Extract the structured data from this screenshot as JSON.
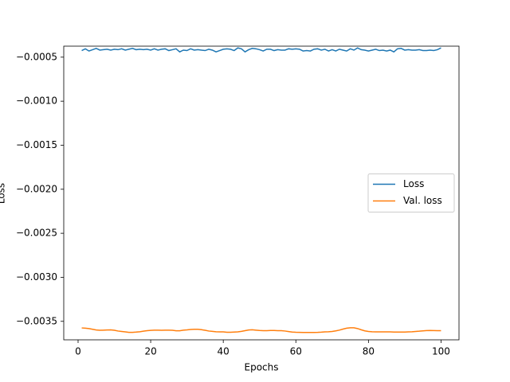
{
  "chart_data": {
    "type": "line",
    "xlabel": "Epochs",
    "ylabel": "Loss",
    "x": [
      1,
      2,
      3,
      4,
      5,
      6,
      7,
      8,
      9,
      10,
      11,
      12,
      13,
      14,
      15,
      16,
      17,
      18,
      19,
      20,
      21,
      22,
      23,
      24,
      25,
      26,
      27,
      28,
      29,
      30,
      31,
      32,
      33,
      34,
      35,
      36,
      37,
      38,
      39,
      40,
      41,
      42,
      43,
      44,
      45,
      46,
      47,
      48,
      49,
      50,
      51,
      52,
      53,
      54,
      55,
      56,
      57,
      58,
      59,
      60,
      61,
      62,
      63,
      64,
      65,
      66,
      67,
      68,
      69,
      70,
      71,
      72,
      73,
      74,
      75,
      76,
      77,
      78,
      79,
      80,
      81,
      82,
      83,
      84,
      85,
      86,
      87,
      88,
      89,
      90,
      91,
      92,
      93,
      94,
      95,
      96,
      97,
      98,
      99,
      100
    ],
    "series": [
      {
        "name": "Loss",
        "color": "#1f77b4",
        "values": [
          -0.000425,
          -0.000405,
          -0.00043,
          -0.000415,
          -0.0004,
          -0.00042,
          -0.000415,
          -0.00041,
          -0.00042,
          -0.00041,
          -0.000415,
          -0.000405,
          -0.00042,
          -0.00041,
          -0.0004,
          -0.000415,
          -0.00041,
          -0.000415,
          -0.00041,
          -0.00042,
          -0.000405,
          -0.00042,
          -0.00041,
          -0.000405,
          -0.000425,
          -0.000415,
          -0.000405,
          -0.00044,
          -0.00042,
          -0.000425,
          -0.000405,
          -0.00042,
          -0.000415,
          -0.00042,
          -0.000425,
          -0.00041,
          -0.00042,
          -0.00044,
          -0.000425,
          -0.00041,
          -0.000405,
          -0.00041,
          -0.000425,
          -0.000395,
          -0.000405,
          -0.00044,
          -0.000415,
          -0.0004,
          -0.000405,
          -0.000415,
          -0.00043,
          -0.00041,
          -0.00041,
          -0.000425,
          -0.000415,
          -0.00042,
          -0.00042,
          -0.000405,
          -0.00041,
          -0.000405,
          -0.00041,
          -0.00043,
          -0.000425,
          -0.00043,
          -0.00041,
          -0.000405,
          -0.00042,
          -0.00041,
          -0.00043,
          -0.000415,
          -0.00043,
          -0.00041,
          -0.00042,
          -0.00043,
          -0.000405,
          -0.00042,
          -0.000395,
          -0.000415,
          -0.00042,
          -0.00043,
          -0.00042,
          -0.00041,
          -0.000425,
          -0.00042,
          -0.00043,
          -0.00042,
          -0.00044,
          -0.000405,
          -0.0004,
          -0.00042,
          -0.000415,
          -0.00042,
          -0.00042,
          -0.000415,
          -0.000425,
          -0.000425,
          -0.00042,
          -0.000425,
          -0.000415,
          -0.000395
        ]
      },
      {
        "name": "Val. loss",
        "color": "#ff7f0e",
        "values": [
          -0.003575,
          -0.003578,
          -0.003582,
          -0.00359,
          -0.003598,
          -0.003602,
          -0.0036,
          -0.003598,
          -0.003597,
          -0.003602,
          -0.00361,
          -0.003615,
          -0.00362,
          -0.003625,
          -0.003625,
          -0.003622,
          -0.003618,
          -0.003612,
          -0.003606,
          -0.003603,
          -0.0036,
          -0.0036,
          -0.003602,
          -0.0036,
          -0.0036,
          -0.003602,
          -0.003607,
          -0.003607,
          -0.0036,
          -0.003597,
          -0.003592,
          -0.00359,
          -0.00359,
          -0.003595,
          -0.003602,
          -0.00361,
          -0.003614,
          -0.003618,
          -0.00362,
          -0.00362,
          -0.003624,
          -0.003624,
          -0.003622,
          -0.00362,
          -0.003614,
          -0.003606,
          -0.003598,
          -0.003596,
          -0.0036,
          -0.003604,
          -0.003606,
          -0.003606,
          -0.003604,
          -0.003604,
          -0.003606,
          -0.003606,
          -0.00361,
          -0.003616,
          -0.003622,
          -0.003624,
          -0.003625,
          -0.003626,
          -0.003626,
          -0.003626,
          -0.003626,
          -0.003625,
          -0.003623,
          -0.00362,
          -0.003618,
          -0.003615,
          -0.003608,
          -0.0036,
          -0.003588,
          -0.003578,
          -0.003573,
          -0.003573,
          -0.003582,
          -0.003596,
          -0.003608,
          -0.003615,
          -0.003618,
          -0.00362,
          -0.00362,
          -0.00362,
          -0.00362,
          -0.00362,
          -0.003622,
          -0.003622,
          -0.003622,
          -0.003622,
          -0.00362,
          -0.003618,
          -0.003615,
          -0.003612,
          -0.003608,
          -0.003605,
          -0.003604,
          -0.003605,
          -0.003606,
          -0.003606
        ]
      }
    ],
    "xlim": [
      -3.95,
      104.95
    ],
    "xticks": [
      0,
      20,
      40,
      60,
      80,
      100
    ],
    "ylim": [
      -0.00371,
      -0.000375
    ],
    "yticks": [
      {
        "value": -0.0005,
        "label": "−0.0005"
      },
      {
        "value": -0.001,
        "label": "−0.0010"
      },
      {
        "value": -0.0015,
        "label": "−0.0015"
      },
      {
        "value": -0.002,
        "label": "−0.0020"
      },
      {
        "value": -0.0025,
        "label": "−0.0025"
      },
      {
        "value": -0.003,
        "label": "−0.0030"
      },
      {
        "value": -0.0035,
        "label": "−0.0035"
      }
    ],
    "legend": "center right",
    "grid": false
  }
}
